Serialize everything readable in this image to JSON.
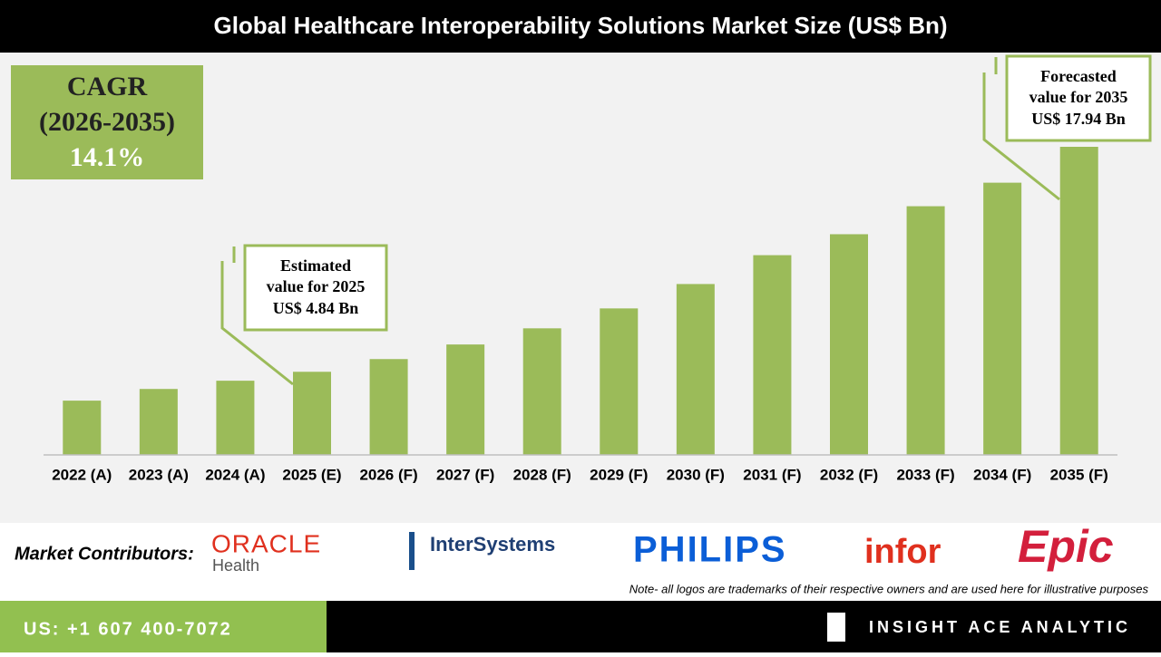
{
  "chart_data": {
    "type": "bar",
    "title": "Global Healthcare Interoperability Solutions Market Size (US$ Bn)",
    "categories": [
      "2022 (A)",
      "2023 (A)",
      "2024 (A)",
      "2025 (E)",
      "2026 (F)",
      "2027 (F)",
      "2028 (F)",
      "2029 (F)",
      "2030 (F)",
      "2031 (F)",
      "2032 (F)",
      "2033 (F)",
      "2034 (F)",
      "2035 (F)"
    ],
    "values": [
      3.16,
      3.84,
      4.32,
      4.84,
      5.58,
      6.43,
      7.37,
      8.53,
      9.95,
      11.63,
      12.85,
      14.48,
      15.85,
      17.94
    ],
    "color": "#9bbb59",
    "cagr": {
      "label": "CAGR",
      "period": "(2026-2035)",
      "value": "14.1%"
    },
    "annotations": [
      {
        "lines": [
          "Estimated",
          "value for 2025",
          "US$ 4.84 Bn"
        ]
      },
      {
        "lines": [
          "Forecasted",
          "value for 2035",
          "US$ 17.94 Bn"
        ]
      }
    ]
  },
  "contributors": {
    "label": "Market Contributors:",
    "logos": [
      "ORACLE",
      "Health",
      "InterSystems",
      "PHILIPS",
      "infor",
      "Epic"
    ],
    "note": "Note- all logos are trademarks of their respective owners and are used here for illustrative purposes"
  },
  "footer": {
    "phone": "US: +1 607 400-7072",
    "brand": "INSIGHT ACE ANALYTIC"
  }
}
